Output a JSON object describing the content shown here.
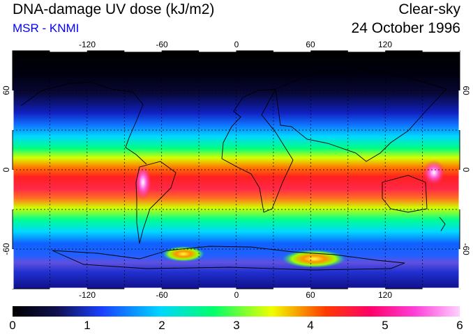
{
  "header": {
    "title": "DNA-damage UV dose (kJ/m2)",
    "subtitle": "MSR - KNMI",
    "condition": "Clear-sky",
    "date": "24 October 1996"
  },
  "map": {
    "lon_ticks": [
      "-120",
      "-60",
      "0",
      "60",
      "120"
    ],
    "lat_ticks": [
      "60",
      "0",
      "-60"
    ],
    "lon_range": [
      -180,
      180
    ],
    "lat_range": [
      -90,
      90
    ],
    "gridlines": "dashed every 30 degrees",
    "coastlines": true
  },
  "colorbar": {
    "ticks": [
      "0",
      "1",
      "2",
      "3",
      "4",
      "5",
      "6"
    ],
    "range": [
      0,
      6
    ],
    "colors": [
      "#000000",
      "#10104f",
      "#1a40ff",
      "#00d6ff",
      "#00ff6a",
      "#f0ff00",
      "#ff3a00",
      "#ff0068",
      "#ff40d8",
      "#ffd0ff"
    ]
  }
}
